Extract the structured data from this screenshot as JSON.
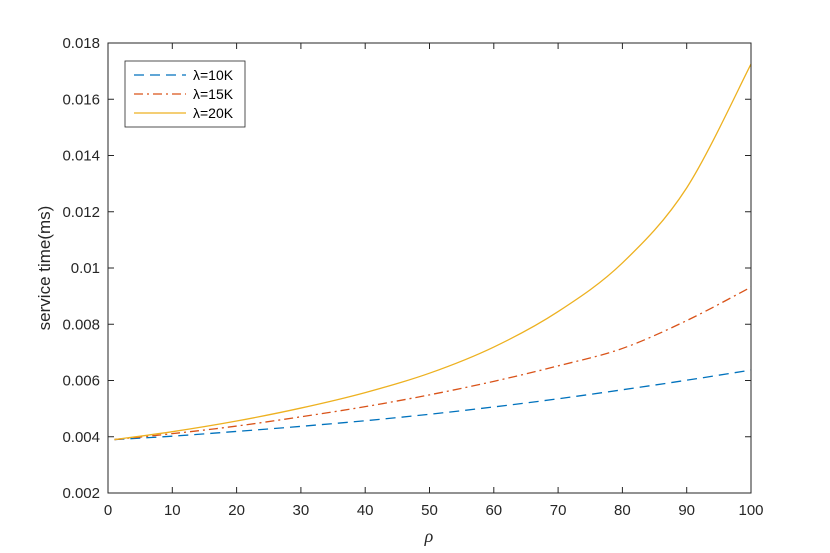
{
  "chart_data": {
    "type": "line",
    "title": "",
    "xlabel": "ρ",
    "ylabel": "service time(ms)",
    "xlim": [
      0,
      100
    ],
    "ylim": [
      0.002,
      0.018
    ],
    "xticks": [
      0,
      10,
      20,
      30,
      40,
      50,
      60,
      70,
      80,
      90,
      100
    ],
    "xtick_labels": [
      "0",
      "10",
      "20",
      "30",
      "40",
      "50",
      "60",
      "70",
      "80",
      "90",
      "100"
    ],
    "yticks": [
      0.002,
      0.004,
      0.006,
      0.008,
      0.01,
      0.012,
      0.014,
      0.016,
      0.018
    ],
    "ytick_labels": [
      "0.002",
      "0.004",
      "0.006",
      "0.008",
      "0.01",
      "0.012",
      "0.014",
      "0.016",
      "0.018"
    ],
    "grid": false,
    "legend_position": "top-left",
    "x": [
      1,
      10,
      20,
      30,
      40,
      50,
      60,
      70,
      80,
      90,
      100
    ],
    "series": [
      {
        "name": "λ=10K",
        "color": "#0072BD",
        "style": "dashed",
        "values": [
          0.0039,
          0.00402,
          0.00419,
          0.00437,
          0.00457,
          0.0048,
          0.00506,
          0.00535,
          0.00567,
          0.00601,
          0.00637
        ]
      },
      {
        "name": "λ=15K",
        "color": "#D95319",
        "style": "dashdot",
        "values": [
          0.0039,
          0.00411,
          0.00438,
          0.00471,
          0.00507,
          0.00549,
          0.00597,
          0.00652,
          0.00714,
          0.00813,
          0.00932
        ]
      },
      {
        "name": "λ=20K",
        "color": "#EDB120",
        "style": "solid",
        "values": [
          0.0039,
          0.00418,
          0.00456,
          0.00502,
          0.00557,
          0.00626,
          0.00719,
          0.00845,
          0.01018,
          0.01285,
          0.01725
        ]
      }
    ]
  }
}
